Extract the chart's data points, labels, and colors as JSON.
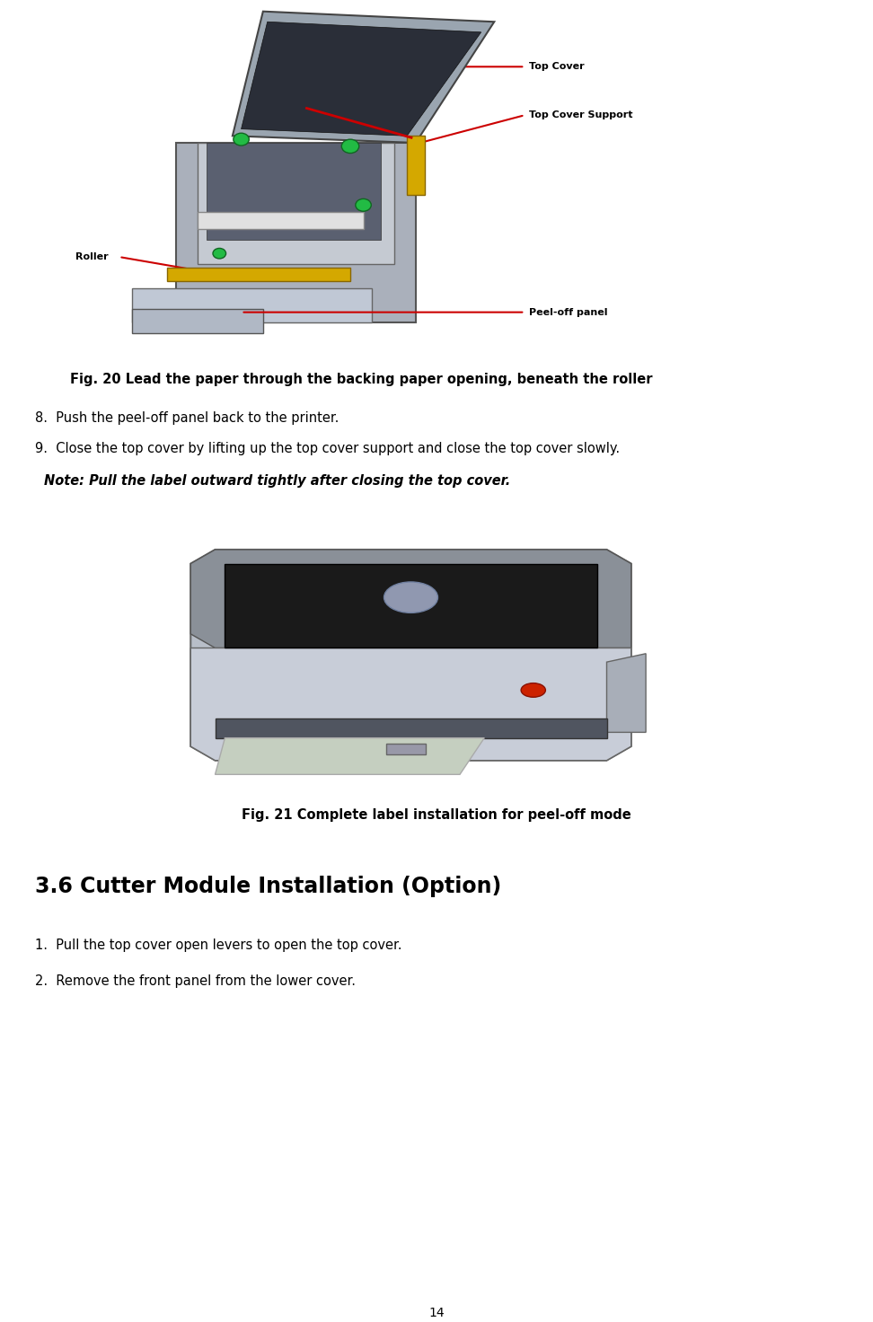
{
  "background_color": "#ffffff",
  "page_width": 9.72,
  "page_height": 14.72,
  "dpi": 100,
  "fig20_caption": "Fig. 20 Lead the paper through the backing paper opening, beneath the roller",
  "fig21_caption": "Fig. 21 Complete label installation for peel-off mode",
  "section_title": "3.6 Cutter Module Installation (Option)",
  "step8": "Push the peel-off panel back to the printer.",
  "step9": "Close the top cover by lifting up the top cover support and close the top cover slowly.",
  "note": "Note: Pull the label outward tightly after closing the top cover.",
  "list_item1": "Pull the top cover open levers to open the top cover.",
  "list_item2": "Remove the front panel from the lower cover.",
  "page_number": "14",
  "label_top_cover": "Top Cover",
  "label_top_cover_support": "Top Cover Support",
  "label_roller": "Roller",
  "label_peel_off": "Peel-off panel",
  "arrow_color": "#cc0000",
  "body_font_size": 10.5,
  "caption_font_size": 10.5,
  "section_font_size": 17,
  "note_font_size": 10.5
}
